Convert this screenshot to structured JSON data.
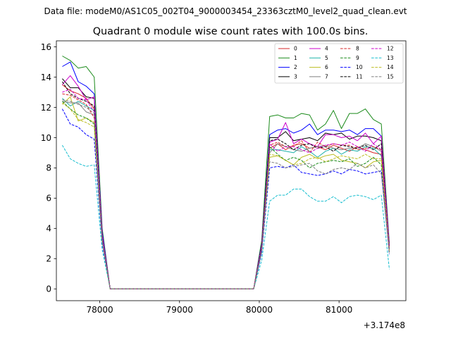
{
  "chart_data": {
    "type": "line",
    "suptitle": "Data file: modeM0/AS1C05_002T04_9000003454_23363cztM0_level2_quad_clean.evt",
    "title": "Quadrant 0 module wise count rates with 100.0s bins.",
    "xlabel": "",
    "ylabel": "",
    "x_offset_label": "+3.174e8",
    "xlim": [
      77456,
      81838
    ],
    "ylim": [
      -0.78,
      16.4
    ],
    "x_ticks": [
      78000,
      79000,
      80000,
      81000
    ],
    "x_tick_labels": [
      "78000",
      "79000",
      "80000",
      "81000"
    ],
    "y_ticks": [
      0,
      2,
      4,
      6,
      8,
      10,
      12,
      14,
      16
    ],
    "y_tick_labels": [
      "0",
      "2",
      "4",
      "6",
      "8",
      "10",
      "12",
      "14",
      "16"
    ],
    "grid": false,
    "legend": "top-right",
    "legend_columns": 4,
    "seg1_x": [
      77530,
      77630,
      77730,
      77830,
      77930,
      78030,
      78130
    ],
    "seg2_x": [
      79930,
      80030,
      80130,
      80230,
      80330,
      80430,
      80530,
      80630,
      80730,
      80830,
      80930,
      81030,
      81130,
      81230,
      81330,
      81430,
      81530,
      81630
    ],
    "series": [
      {
        "name": "0",
        "color": "#d62728",
        "dash": false,
        "seg1": [
          13.5,
          13.1,
          12.9,
          12.6,
          11.9,
          3.5,
          0
        ],
        "seg2": [
          0,
          2.8,
          9.3,
          9.6,
          9.2,
          9.5,
          9.6,
          9.3,
          9.4,
          9.2,
          9.5,
          9.3,
          9.1,
          9.4,
          9.2,
          9.0,
          8.9,
          2.6
        ]
      },
      {
        "name": "1",
        "color": "#1a8a1a",
        "dash": false,
        "seg1": [
          15.4,
          15.1,
          14.6,
          14.7,
          14.0,
          4.0,
          0
        ],
        "seg2": [
          0,
          3.2,
          11.4,
          11.5,
          11.3,
          11.3,
          11.6,
          11.5,
          10.5,
          10.9,
          11.8,
          10.6,
          11.6,
          11.6,
          11.9,
          11.2,
          10.9,
          3.0
        ]
      },
      {
        "name": "2",
        "color": "#0000ff",
        "dash": false,
        "seg1": [
          14.7,
          15.0,
          13.7,
          13.4,
          12.9,
          3.8,
          0
        ],
        "seg2": [
          0,
          3.0,
          10.2,
          10.5,
          10.6,
          10.3,
          10.5,
          10.9,
          10.2,
          10.5,
          10.5,
          10.4,
          10.5,
          10.2,
          10.6,
          10.6,
          10.1,
          2.9
        ]
      },
      {
        "name": "3",
        "color": "#000000",
        "dash": false,
        "seg1": [
          13.9,
          13.3,
          13.3,
          12.7,
          12.6,
          3.6,
          0
        ],
        "seg2": [
          0,
          2.9,
          10.0,
          10.0,
          10.4,
          9.8,
          9.9,
          10.0,
          9.8,
          10.3,
          10.2,
          10.3,
          9.9,
          10.1,
          10.1,
          10.0,
          9.8,
          2.8
        ]
      },
      {
        "name": "4",
        "color": "#cc00cc",
        "dash": false,
        "seg1": [
          13.5,
          14.1,
          13.4,
          12.5,
          12.7,
          3.6,
          0
        ],
        "seg2": [
          0,
          2.9,
          9.7,
          9.9,
          11.0,
          9.6,
          9.9,
          9.6,
          9.4,
          10.2,
          10.2,
          10.0,
          10.1,
          9.8,
          10.3,
          9.6,
          10.1,
          2.8
        ]
      },
      {
        "name": "5",
        "color": "#20b2aa",
        "dash": false,
        "seg1": [
          12.6,
          12.1,
          12.4,
          12.1,
          11.8,
          3.3,
          0
        ],
        "seg2": [
          0,
          2.6,
          9.2,
          9.2,
          9.1,
          9.0,
          9.4,
          9.1,
          8.7,
          9.1,
          9.3,
          8.9,
          9.2,
          9.1,
          9.4,
          9.3,
          8.8,
          2.5
        ]
      },
      {
        "name": "6",
        "color": "#bcbd22",
        "dash": false,
        "seg1": [
          12.2,
          12.7,
          11.1,
          11.3,
          11.0,
          3.3,
          0
        ],
        "seg2": [
          0,
          2.5,
          8.7,
          8.8,
          8.5,
          8.2,
          8.7,
          8.9,
          8.6,
          8.8,
          8.9,
          8.5,
          8.4,
          8.3,
          8.0,
          8.4,
          8.5,
          2.4
        ]
      },
      {
        "name": "7",
        "color": "#7f7f7f",
        "dash": false,
        "seg1": [
          12.4,
          12.3,
          12.3,
          11.7,
          11.5,
          3.3,
          0
        ],
        "seg2": [
          0,
          2.6,
          9.0,
          9.6,
          9.4,
          9.2,
          9.1,
          9.3,
          9.4,
          9.5,
          9.3,
          9.2,
          9.3,
          9.3,
          9.6,
          9.4,
          9.1,
          2.6
        ]
      },
      {
        "name": "8",
        "color": "#d62728",
        "dash": true,
        "seg1": [
          12.9,
          12.8,
          12.5,
          12.2,
          11.3,
          3.4,
          0
        ],
        "seg2": [
          0,
          2.8,
          9.5,
          9.7,
          9.4,
          9.4,
          9.8,
          9.0,
          9.7,
          9.4,
          9.6,
          9.5,
          9.5,
          9.2,
          9.3,
          9.4,
          9.2,
          2.7
        ]
      },
      {
        "name": "9",
        "color": "#1a8a1a",
        "dash": true,
        "seg1": [
          12.4,
          11.9,
          11.5,
          11.3,
          10.9,
          3.2,
          0
        ],
        "seg2": [
          0,
          2.5,
          9.4,
          8.9,
          8.5,
          8.7,
          8.5,
          8.0,
          8.3,
          8.4,
          8.5,
          8.4,
          8.6,
          8.1,
          8.3,
          8.7,
          8.2,
          2.4
        ]
      },
      {
        "name": "10",
        "color": "#0000ff",
        "dash": true,
        "seg1": [
          11.9,
          10.9,
          10.7,
          10.2,
          9.9,
          3.0,
          0
        ],
        "seg2": [
          0,
          2.4,
          8.0,
          8.1,
          8.0,
          8.2,
          7.7,
          7.6,
          7.5,
          7.6,
          7.8,
          7.6,
          7.9,
          7.8,
          7.6,
          7.7,
          7.8,
          2.3
        ]
      },
      {
        "name": "11",
        "color": "#000000",
        "dash": true,
        "seg1": [
          13.7,
          12.9,
          12.6,
          12.4,
          12.1,
          3.5,
          0
        ],
        "seg2": [
          0,
          2.9,
          9.8,
          9.9,
          9.6,
          9.2,
          9.5,
          9.6,
          9.3,
          9.4,
          9.1,
          9.5,
          9.4,
          9.3,
          9.5,
          9.2,
          9.6,
          2.7
        ]
      },
      {
        "name": "12",
        "color": "#cc00cc",
        "dash": true,
        "seg1": [
          13.0,
          13.2,
          12.6,
          12.5,
          11.7,
          3.5,
          0
        ],
        "seg2": [
          0,
          2.8,
          9.6,
          9.1,
          9.4,
          9.4,
          9.2,
          9.0,
          9.3,
          9.5,
          9.6,
          9.5,
          9.7,
          9.4,
          9.1,
          9.6,
          9.2,
          2.7
        ]
      },
      {
        "name": "13",
        "color": "#17becf",
        "dash": true,
        "seg1": [
          9.5,
          8.6,
          8.3,
          8.1,
          8.2,
          2.6,
          0
        ],
        "seg2": [
          0,
          1.9,
          5.8,
          6.2,
          6.2,
          6.6,
          6.6,
          6.1,
          5.8,
          5.8,
          6.1,
          5.7,
          6.1,
          6.2,
          6.1,
          5.9,
          6.2,
          1.3
        ]
      },
      {
        "name": "14",
        "color": "#bcbd22",
        "dash": true,
        "seg1": [
          12.3,
          11.9,
          11.2,
          11.0,
          10.7,
          3.2,
          0
        ],
        "seg2": [
          0,
          2.6,
          8.9,
          8.8,
          8.5,
          8.2,
          8.3,
          8.6,
          8.7,
          8.4,
          8.6,
          8.8,
          8.7,
          8.6,
          8.9,
          8.6,
          8.6,
          2.5
        ]
      },
      {
        "name": "15",
        "color": "#7f7f7f",
        "dash": true,
        "seg1": [
          12.5,
          12.4,
          12.2,
          12.0,
          11.6,
          3.3,
          0
        ],
        "seg2": [
          0,
          2.6,
          8.4,
          8.3,
          8.0,
          8.1,
          8.2,
          8.3,
          7.8,
          7.6,
          7.9,
          8.0,
          7.9,
          8.3,
          8.0,
          8.2,
          7.6,
          2.4
        ]
      }
    ]
  }
}
